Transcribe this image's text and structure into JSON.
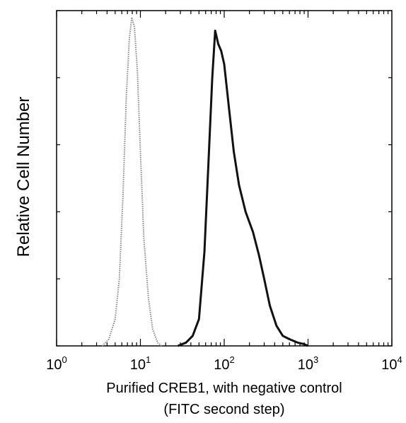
{
  "chart_data": {
    "type": "line",
    "title": "",
    "xlabel_line1": "Purified CREB1, with negative control",
    "xlabel_line2": "(FITC second step)",
    "ylabel": "Relative Cell Number",
    "x_scale": "log",
    "xlim": [
      1,
      10000
    ],
    "ylim": [
      0,
      100
    ],
    "x_ticks": [
      {
        "value": 1,
        "base": "10",
        "exp": "0"
      },
      {
        "value": 10,
        "base": "10",
        "exp": "1"
      },
      {
        "value": 100,
        "base": "10",
        "exp": "2"
      },
      {
        "value": 1000,
        "base": "10",
        "exp": "3"
      },
      {
        "value": 10000,
        "base": "10",
        "exp": "4"
      }
    ],
    "y_ticks": [
      0,
      20,
      40,
      60,
      80,
      100
    ],
    "grid": false,
    "legend": "none",
    "series": [
      {
        "style": "dotted-gray",
        "color": "#8a8a8a",
        "x": [
          3.5,
          4.2,
          5.0,
          5.6,
          6.2,
          6.8,
          7.4,
          7.9,
          8.5,
          9.2,
          10,
          11,
          12.5,
          14,
          16,
          18
        ],
        "y": [
          0,
          2,
          8,
          20,
          45,
          75,
          92,
          98,
          95,
          82,
          58,
          32,
          14,
          5,
          1,
          0
        ]
      },
      {
        "style": "solid-black",
        "color": "#111111",
        "x": [
          28,
          35,
          42,
          50,
          58,
          65,
          72,
          78,
          85,
          92,
          100,
          115,
          130,
          150,
          180,
          220,
          260,
          300,
          350,
          420,
          500,
          600,
          750,
          900,
          1000
        ],
        "y": [
          0,
          1,
          3,
          8,
          28,
          55,
          80,
          94,
          90,
          88,
          84,
          70,
          58,
          48,
          40,
          34,
          27,
          20,
          12,
          6,
          3,
          2,
          1,
          0.5,
          0
        ]
      }
    ]
  }
}
